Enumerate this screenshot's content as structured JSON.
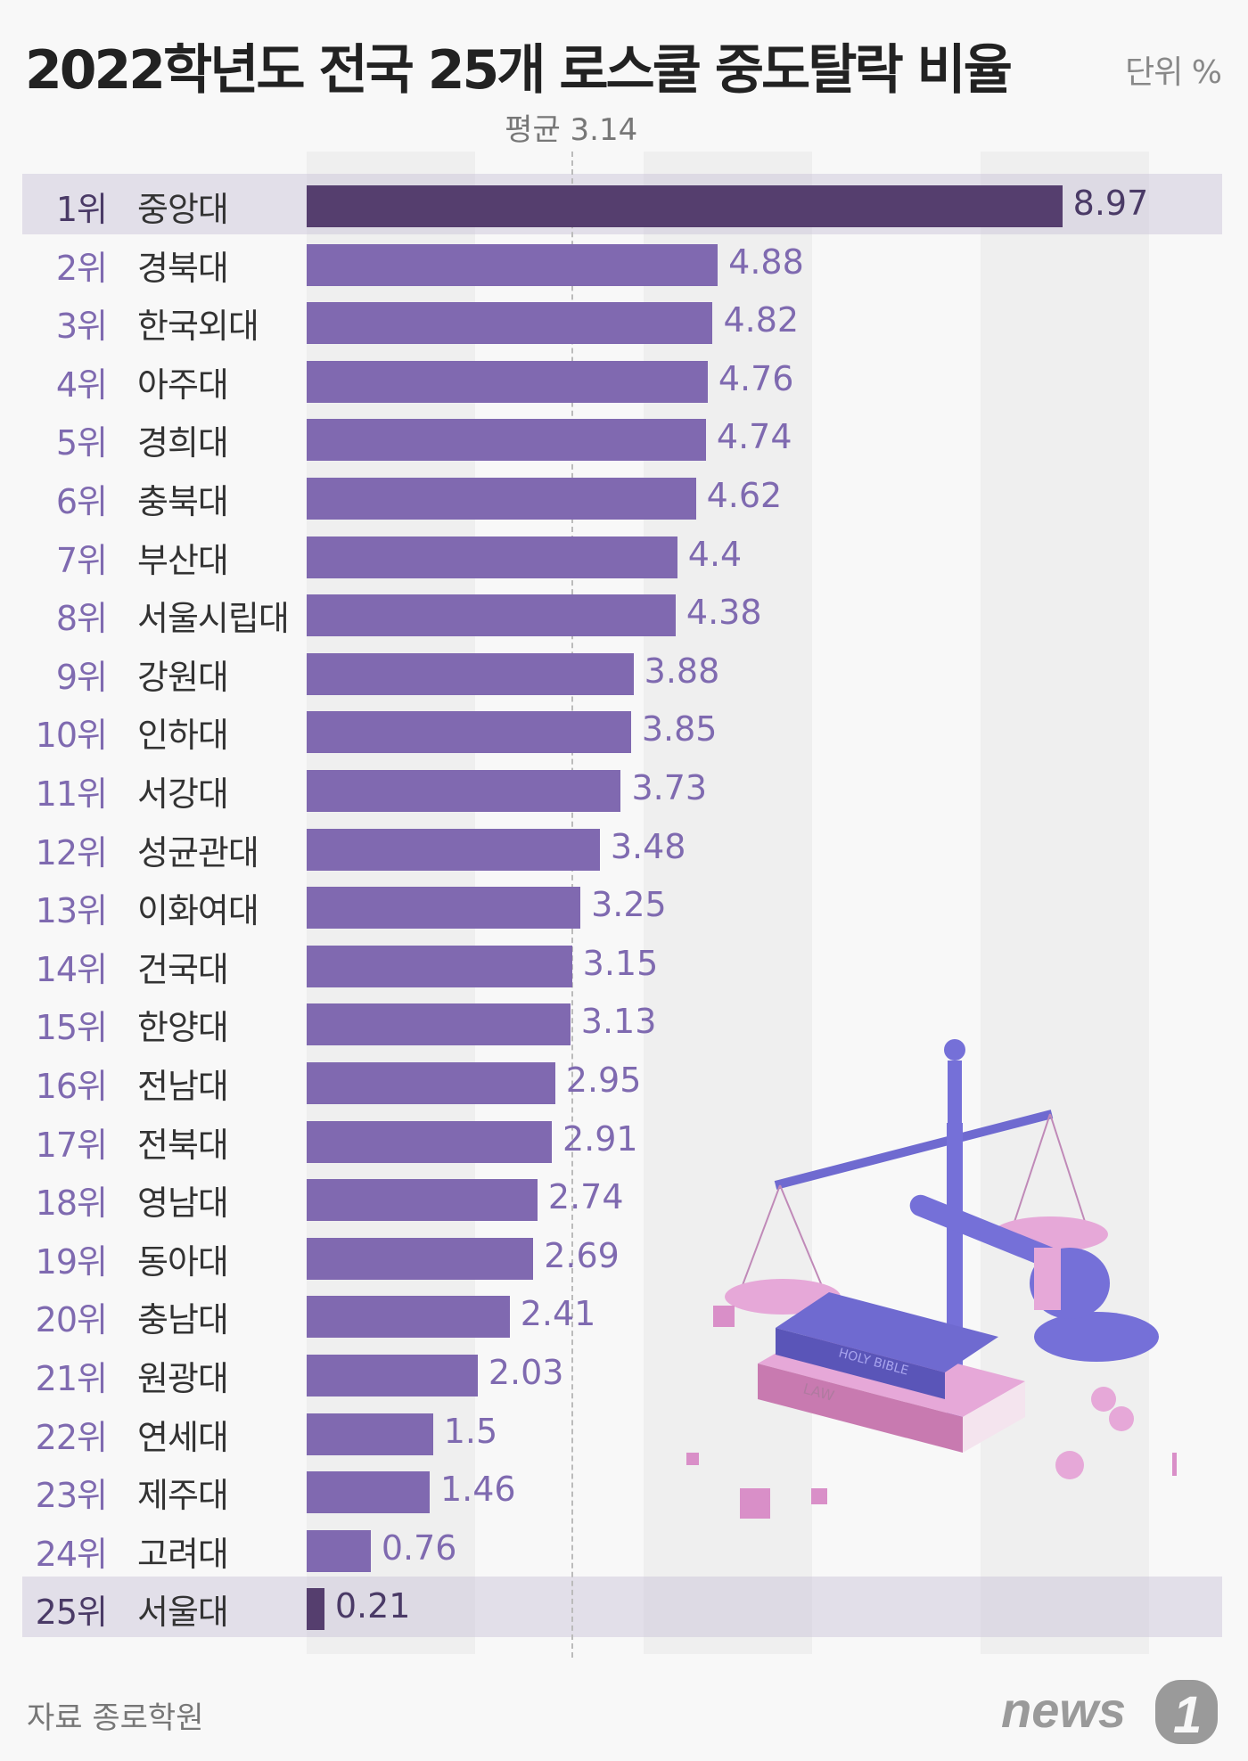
{
  "chart_data": {
    "type": "bar",
    "orientation": "horizontal",
    "title": "2022학년도 전국 25개 로스쿨 중도탈락 비율",
    "unit_label": "단위  %",
    "average_label": "평균 3.14",
    "average": 3.14,
    "xlim": [
      0,
      10
    ],
    "grid": "alternating vertical bands every 2 units",
    "bar_color": "#8069b0",
    "highlight_color": "#553e6e",
    "highlighted_ranks": [
      1,
      25
    ],
    "ranks": [
      "1위",
      "2위",
      "3위",
      "4위",
      "5위",
      "6위",
      "7위",
      "8위",
      "9위",
      "10위",
      "11위",
      "12위",
      "13위",
      "14위",
      "15위",
      "16위",
      "17위",
      "18위",
      "19위",
      "20위",
      "21위",
      "22위",
      "23위",
      "24위",
      "25위"
    ],
    "categories": [
      "중앙대",
      "경북대",
      "한국외대",
      "아주대",
      "경희대",
      "충북대",
      "부산대",
      "서울시립대",
      "강원대",
      "인하대",
      "서강대",
      "성균관대",
      "이화여대",
      "건국대",
      "한양대",
      "전남대",
      "전북대",
      "영남대",
      "동아대",
      "충남대",
      "원광대",
      "연세대",
      "제주대",
      "고려대",
      "서울대"
    ],
    "values": [
      8.97,
      4.88,
      4.82,
      4.76,
      4.74,
      4.62,
      4.4,
      4.38,
      3.88,
      3.85,
      3.73,
      3.48,
      3.25,
      3.15,
      3.13,
      2.95,
      2.91,
      2.74,
      2.69,
      2.41,
      2.03,
      1.5,
      1.46,
      0.76,
      0.21
    ],
    "value_labels": [
      "8.97",
      "4.88",
      "4.82",
      "4.76",
      "4.74",
      "4.62",
      "4.4",
      "4.38",
      "3.88",
      "3.85",
      "3.73",
      "3.48",
      "3.25",
      "3.15",
      "3.13",
      "2.95",
      "2.91",
      "2.74",
      "2.69",
      "2.41",
      "2.03",
      "1.5",
      "1.46",
      "0.76",
      "0.21"
    ]
  },
  "footer": {
    "source": "자료  종로학원",
    "logo": "news1"
  },
  "illustration": {
    "book_top": "HOLY BIBLE",
    "book_bottom": "LAW"
  }
}
